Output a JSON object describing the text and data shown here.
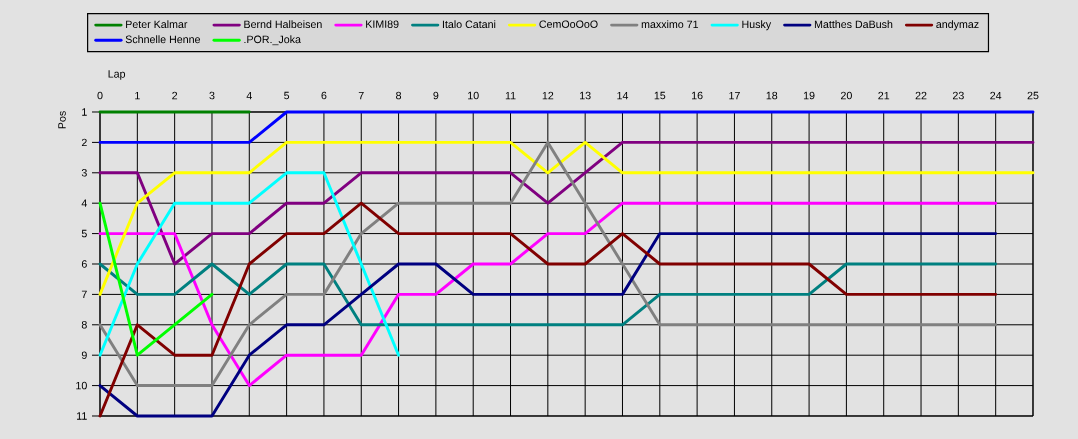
{
  "chart_data": {
    "type": "line",
    "xlabel": "Lap",
    "ylabel": "Pos",
    "x": [
      0,
      1,
      2,
      3,
      4,
      5,
      6,
      7,
      8,
      9,
      10,
      11,
      12,
      13,
      14,
      15,
      16,
      17,
      18,
      19,
      20,
      21,
      22,
      23,
      24,
      25
    ],
    "xlim": [
      0,
      25
    ],
    "xticks": [
      0,
      1,
      2,
      3,
      4,
      5,
      6,
      7,
      8,
      9,
      10,
      11,
      12,
      13,
      14,
      15,
      16,
      17,
      18,
      19,
      20,
      21,
      22,
      23,
      24,
      25
    ],
    "ylim": [
      11,
      1
    ],
    "yticks": [
      1,
      2,
      3,
      4,
      5,
      6,
      7,
      8,
      9,
      10,
      11
    ],
    "grid": true,
    "legend": "top",
    "line_style": "solid",
    "series": [
      {
        "name": "Peter Kalmar",
        "color": "#008000",
        "values": [
          1,
          1,
          1,
          1,
          1,
          null,
          null,
          null,
          null,
          null,
          null,
          null,
          null,
          null,
          null,
          null,
          null,
          null,
          null,
          null,
          null,
          null,
          null,
          null,
          null,
          null
        ]
      },
      {
        "name": "Bernd Halbeisen",
        "color": "#800080",
        "values": [
          3,
          3,
          6,
          5,
          5,
          4,
          4,
          3,
          3,
          3,
          3,
          3,
          4,
          3,
          2,
          2,
          2,
          2,
          2,
          2,
          2,
          2,
          2,
          2,
          2,
          2
        ]
      },
      {
        "name": "KIMI89",
        "color": "#ff00ff",
        "values": [
          5,
          5,
          5,
          8,
          10,
          9,
          9,
          9,
          7,
          7,
          6,
          6,
          5,
          5,
          4,
          4,
          4,
          4,
          4,
          4,
          4,
          4,
          4,
          4,
          4,
          null
        ]
      },
      {
        "name": "Italo Catani",
        "color": "#008080",
        "values": [
          6,
          7,
          7,
          6,
          7,
          6,
          6,
          8,
          8,
          8,
          8,
          8,
          8,
          8,
          8,
          7,
          7,
          7,
          7,
          7,
          6,
          6,
          6,
          6,
          6,
          null
        ]
      },
      {
        "name": "CemOoOoO",
        "color": "#ffff00",
        "values": [
          7,
          4,
          3,
          3,
          3,
          2,
          2,
          2,
          2,
          2,
          2,
          2,
          3,
          2,
          3,
          3,
          3,
          3,
          3,
          3,
          3,
          3,
          3,
          3,
          3,
          3
        ]
      },
      {
        "name": "maxximo 71",
        "color": "#808080",
        "values": [
          8,
          10,
          10,
          10,
          8,
          7,
          7,
          5,
          4,
          4,
          4,
          4,
          2,
          4,
          6,
          8,
          8,
          8,
          8,
          8,
          8,
          8,
          8,
          8,
          8,
          null
        ]
      },
      {
        "name": "Husky",
        "color": "#00ffff",
        "values": [
          9,
          6,
          4,
          4,
          4,
          3,
          3,
          6,
          9,
          null,
          null,
          null,
          null,
          null,
          null,
          null,
          null,
          null,
          null,
          null,
          null,
          null,
          null,
          null,
          null,
          null
        ]
      },
      {
        "name": "Matthes DaBush",
        "color": "#000080",
        "values": [
          10,
          11,
          11,
          11,
          9,
          8,
          8,
          7,
          6,
          6,
          7,
          7,
          7,
          7,
          7,
          5,
          5,
          5,
          5,
          5,
          5,
          5,
          5,
          5,
          5,
          null
        ]
      },
      {
        "name": "andymaz",
        "color": "#800000",
        "values": [
          11,
          8,
          9,
          9,
          6,
          5,
          5,
          4,
          5,
          5,
          5,
          5,
          6,
          6,
          5,
          6,
          6,
          6,
          6,
          6,
          7,
          7,
          7,
          7,
          7,
          null
        ]
      },
      {
        "name": "Schnelle Henne",
        "color": "#0000ff",
        "values": [
          2,
          2,
          2,
          2,
          2,
          1,
          1,
          1,
          1,
          1,
          1,
          1,
          1,
          1,
          1,
          1,
          1,
          1,
          1,
          1,
          1,
          1,
          1,
          1,
          1,
          1
        ]
      },
      {
        "name": ".POR._Joka",
        "color": "#00ff00",
        "values": [
          4,
          9,
          8,
          7,
          null,
          null,
          null,
          null,
          null,
          null,
          null,
          null,
          null,
          null,
          null,
          null,
          null,
          null,
          null,
          null,
          null,
          null,
          null,
          null,
          null,
          null
        ]
      }
    ]
  }
}
